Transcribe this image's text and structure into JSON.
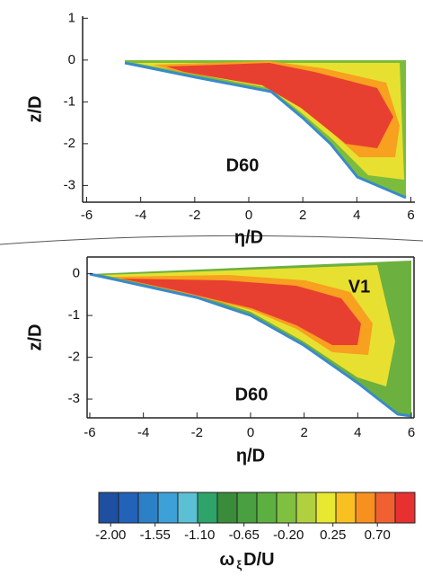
{
  "chart_data": [
    {
      "type": "contour",
      "annotations": [
        "D60"
      ],
      "xlabel": "η/D",
      "ylabel": "z/D",
      "xlim": [
        -6.15,
        6.15
      ],
      "ylim": [
        -3.4,
        1.05
      ],
      "xticks": [
        -6,
        -4,
        -2,
        0,
        2,
        4,
        6
      ],
      "yticks": [
        -3,
        -2,
        -1,
        0,
        1
      ]
    },
    {
      "type": "contour",
      "annotations": [
        "V1",
        "D60"
      ],
      "xlabel": "η/D",
      "ylabel": "z/D",
      "xlim": [
        -6.1,
        6.1
      ],
      "ylim": [
        -3.45,
        0.4
      ],
      "xticks": [
        -6,
        -4,
        -2,
        0,
        2,
        4,
        6
      ],
      "yticks": [
        -3,
        -2,
        -1,
        0
      ]
    }
  ],
  "colorbar": {
    "label": [
      "ω",
      "ξ",
      "D/U"
    ],
    "lim": [
      -2.12,
      1.08
    ],
    "ticks": [
      {
        "value": -2.0,
        "label": "-2.00"
      },
      {
        "value": -1.55,
        "label": "-1.55"
      },
      {
        "value": -1.1,
        "label": "-1.10"
      },
      {
        "value": -0.65,
        "label": "-0.65"
      },
      {
        "value": -0.2,
        "label": "-0.20"
      },
      {
        "value": 0.25,
        "label": "0.25"
      },
      {
        "value": 0.7,
        "label": "0.70"
      }
    ],
    "colors": [
      "#1f4fa0",
      "#2262b8",
      "#2c80c8",
      "#3ea0d8",
      "#5cc0d4",
      "#2ea36a",
      "#3a8c3a",
      "#4aa040",
      "#5cb040",
      "#80c040",
      "#b0d040",
      "#e8e830",
      "#f8c020",
      "#f89020",
      "#f06030",
      "#e83030"
    ]
  }
}
